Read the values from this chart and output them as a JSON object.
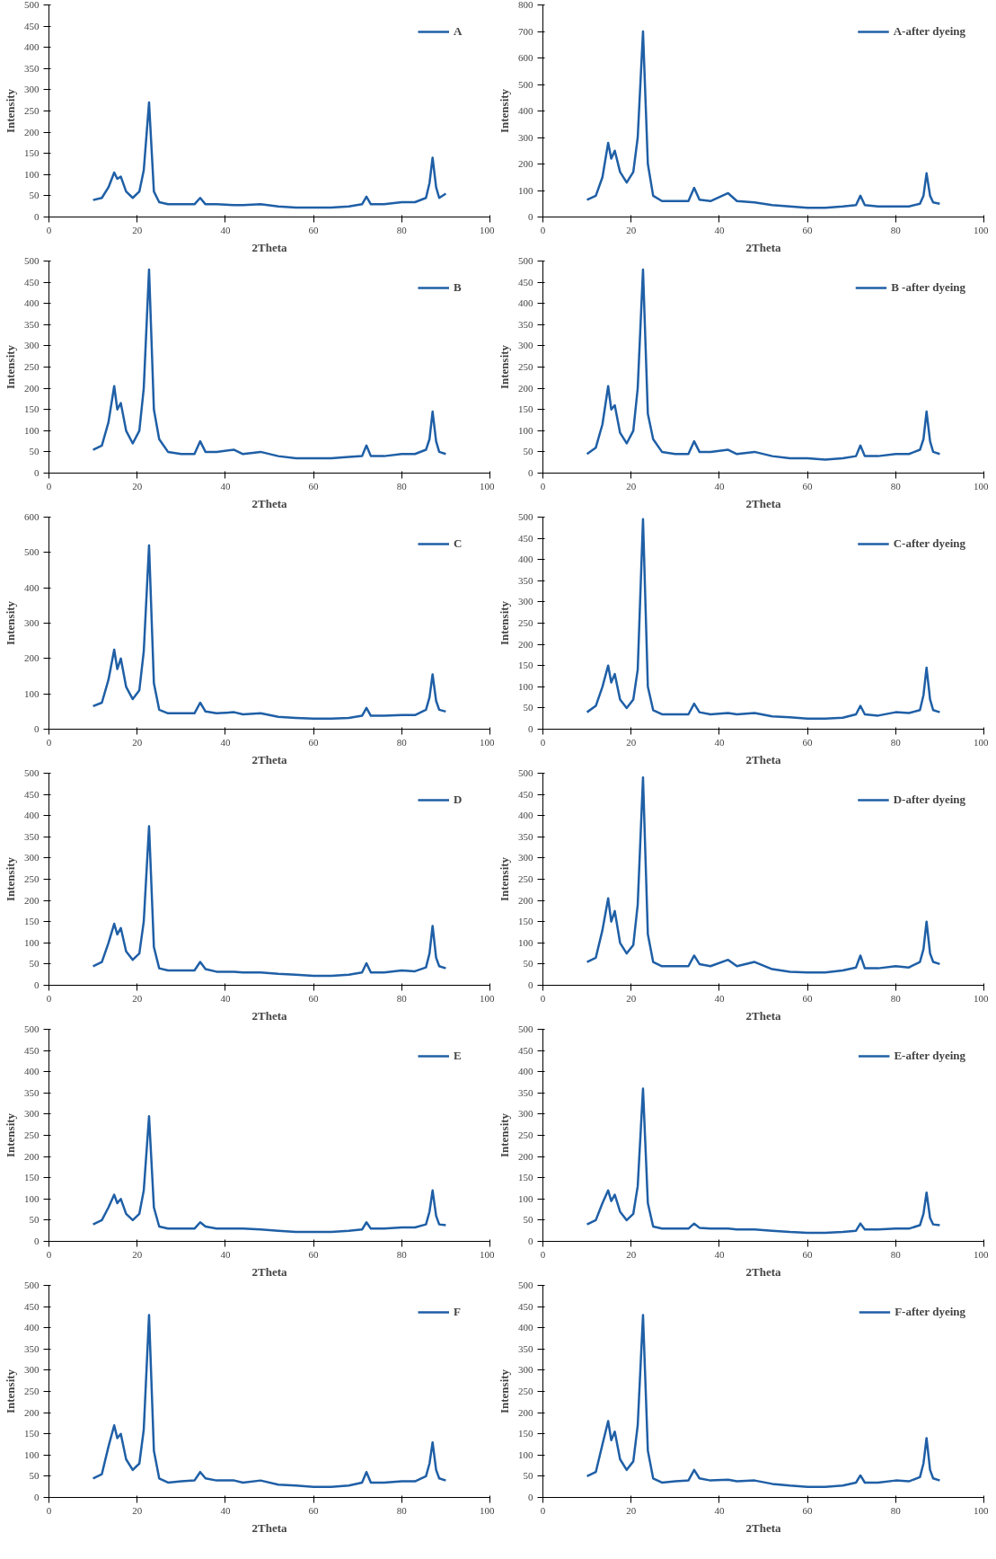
{
  "chart_data": [
    {
      "type": "line",
      "xlabel": "2Theta",
      "ylabel": "Intensity",
      "xlim": [
        0,
        100
      ],
      "xticks": [
        0,
        20,
        40,
        60,
        80,
        100
      ],
      "ylim": [
        0,
        500
      ],
      "yticks": [
        0,
        50,
        100,
        150,
        200,
        250,
        300,
        350,
        400,
        450,
        500
      ],
      "legend": "top right",
      "grid": false,
      "x": [
        10,
        12,
        13.5,
        14.8,
        15.5,
        16.3,
        17.5,
        19,
        20.5,
        21.5,
        22.7,
        23.8,
        25,
        27,
        30,
        33,
        34.3,
        35.5,
        38,
        42,
        44,
        48,
        52,
        56,
        60,
        64,
        68,
        71,
        72,
        73,
        76,
        80,
        83,
        85.5,
        86.3,
        87,
        87.8,
        88.5,
        90
      ],
      "series": [
        {
          "name": "A",
          "color": "#1f5fa6",
          "values": [
            40,
            45,
            70,
            105,
            90,
            95,
            60,
            45,
            60,
            110,
            270,
            60,
            35,
            30,
            30,
            30,
            45,
            30,
            30,
            28,
            28,
            30,
            25,
            22,
            22,
            22,
            25,
            30,
            48,
            30,
            30,
            35,
            35,
            45,
            80,
            140,
            70,
            45,
            55
          ]
        }
      ]
    },
    {
      "type": "line",
      "xlabel": "2Theta",
      "ylabel": "Intensity",
      "xlim": [
        0,
        100
      ],
      "xticks": [
        0,
        20,
        40,
        60,
        80,
        100
      ],
      "ylim": [
        0,
        800
      ],
      "yticks": [
        0,
        100,
        200,
        300,
        400,
        500,
        600,
        700,
        800
      ],
      "legend": "top right",
      "grid": false,
      "x": [
        10,
        12,
        13.5,
        14.8,
        15.5,
        16.3,
        17.5,
        19,
        20.5,
        21.5,
        22.7,
        23.8,
        25,
        27,
        30,
        33,
        34.3,
        35.5,
        38,
        42,
        44,
        48,
        52,
        56,
        60,
        64,
        68,
        71,
        72,
        73,
        76,
        80,
        83,
        85.5,
        86.3,
        87,
        87.8,
        88.5,
        90
      ],
      "series": [
        {
          "name": "A-after dyeing",
          "color": "#1f5fa6",
          "values": [
            65,
            80,
            150,
            280,
            220,
            250,
            170,
            130,
            170,
            300,
            700,
            200,
            80,
            60,
            60,
            60,
            110,
            65,
            60,
            90,
            60,
            55,
            45,
            40,
            35,
            35,
            40,
            45,
            80,
            45,
            40,
            40,
            40,
            50,
            80,
            165,
            80,
            55,
            50
          ]
        }
      ]
    },
    {
      "type": "line",
      "xlabel": "2Theta",
      "ylabel": "Intensity",
      "xlim": [
        0,
        100
      ],
      "xticks": [
        0,
        20,
        40,
        60,
        80,
        100
      ],
      "ylim": [
        0,
        500
      ],
      "yticks": [
        0,
        50,
        100,
        150,
        200,
        250,
        300,
        350,
        400,
        450,
        500
      ],
      "legend": "top right",
      "grid": false,
      "x": [
        10,
        12,
        13.5,
        14.8,
        15.5,
        16.3,
        17.5,
        19,
        20.5,
        21.5,
        22.7,
        23.8,
        25,
        27,
        30,
        33,
        34.3,
        35.5,
        38,
        42,
        44,
        48,
        52,
        56,
        60,
        64,
        68,
        71,
        72,
        73,
        76,
        80,
        83,
        85.5,
        86.3,
        87,
        87.8,
        88.5,
        90
      ],
      "series": [
        {
          "name": "B",
          "color": "#1f5fa6",
          "values": [
            55,
            65,
            120,
            205,
            150,
            165,
            100,
            70,
            100,
            200,
            480,
            150,
            80,
            50,
            45,
            45,
            75,
            50,
            50,
            55,
            45,
            50,
            40,
            35,
            35,
            35,
            38,
            40,
            65,
            40,
            40,
            45,
            45,
            55,
            80,
            145,
            75,
            50,
            45
          ]
        }
      ]
    },
    {
      "type": "line",
      "xlabel": "2Theta",
      "ylabel": "Intensity",
      "xlim": [
        0,
        100
      ],
      "xticks": [
        0,
        20,
        40,
        60,
        80,
        100
      ],
      "ylim": [
        0,
        500
      ],
      "yticks": [
        0,
        50,
        100,
        150,
        200,
        250,
        300,
        350,
        400,
        450,
        500
      ],
      "legend": "top right",
      "grid": false,
      "x": [
        10,
        12,
        13.5,
        14.8,
        15.5,
        16.3,
        17.5,
        19,
        20.5,
        21.5,
        22.7,
        23.8,
        25,
        27,
        30,
        33,
        34.3,
        35.5,
        38,
        42,
        44,
        48,
        52,
        56,
        60,
        64,
        68,
        71,
        72,
        73,
        76,
        80,
        83,
        85.5,
        86.3,
        87,
        87.8,
        88.5,
        90
      ],
      "series": [
        {
          "name": "B -after dyeing",
          "color": "#1f5fa6",
          "values": [
            45,
            60,
            115,
            205,
            150,
            160,
            95,
            70,
            100,
            200,
            480,
            140,
            80,
            50,
            45,
            45,
            75,
            50,
            50,
            55,
            45,
            50,
            40,
            35,
            35,
            32,
            35,
            40,
            65,
            40,
            40,
            45,
            45,
            55,
            80,
            145,
            75,
            50,
            45
          ]
        }
      ]
    },
    {
      "type": "line",
      "xlabel": "2Theta",
      "ylabel": "Intensity",
      "xlim": [
        0,
        100
      ],
      "xticks": [
        0,
        20,
        40,
        60,
        80,
        100
      ],
      "ylim": [
        0,
        600
      ],
      "yticks": [
        0,
        100,
        200,
        300,
        400,
        500,
        600
      ],
      "legend": "top right",
      "grid": false,
      "x": [
        10,
        12,
        13.5,
        14.8,
        15.5,
        16.3,
        17.5,
        19,
        20.5,
        21.5,
        22.7,
        23.8,
        25,
        27,
        30,
        33,
        34.3,
        35.5,
        38,
        42,
        44,
        48,
        52,
        56,
        60,
        64,
        68,
        71,
        72,
        73,
        76,
        80,
        83,
        85.5,
        86.3,
        87,
        87.8,
        88.5,
        90
      ],
      "series": [
        {
          "name": "C",
          "color": "#1f5fa6",
          "values": [
            65,
            75,
            140,
            225,
            170,
            200,
            120,
            85,
            110,
            220,
            520,
            130,
            55,
            45,
            45,
            45,
            75,
            50,
            45,
            48,
            42,
            45,
            35,
            32,
            30,
            30,
            32,
            38,
            60,
            38,
            38,
            40,
            40,
            55,
            90,
            155,
            80,
            55,
            50
          ]
        }
      ]
    },
    {
      "type": "line",
      "xlabel": "2Theta",
      "ylabel": "Intensity",
      "xlim": [
        0,
        100
      ],
      "xticks": [
        0,
        20,
        40,
        60,
        80,
        100
      ],
      "ylim": [
        0,
        500
      ],
      "yticks": [
        0,
        50,
        100,
        150,
        200,
        250,
        300,
        350,
        400,
        450,
        500
      ],
      "legend": "top right",
      "grid": false,
      "x": [
        10,
        12,
        13.5,
        14.8,
        15.5,
        16.3,
        17.5,
        19,
        20.5,
        21.5,
        22.7,
        23.8,
        25,
        27,
        30,
        33,
        34.3,
        35.5,
        38,
        42,
        44,
        48,
        52,
        56,
        60,
        64,
        68,
        71,
        72,
        73,
        76,
        80,
        83,
        85.5,
        86.3,
        87,
        87.8,
        88.5,
        90
      ],
      "series": [
        {
          "name": "C-after dyeing",
          "color": "#1f5fa6",
          "values": [
            40,
            55,
            100,
            150,
            110,
            130,
            70,
            50,
            70,
            140,
            495,
            100,
            45,
            35,
            35,
            35,
            60,
            40,
            35,
            38,
            35,
            38,
            30,
            28,
            25,
            25,
            27,
            35,
            55,
            35,
            32,
            40,
            38,
            45,
            80,
            145,
            70,
            45,
            40
          ]
        }
      ]
    },
    {
      "type": "line",
      "xlabel": "2Theta",
      "ylabel": "Intensity",
      "xlim": [
        0,
        100
      ],
      "xticks": [
        0,
        20,
        40,
        60,
        80,
        100
      ],
      "ylim": [
        0,
        500
      ],
      "yticks": [
        0,
        50,
        100,
        150,
        200,
        250,
        300,
        350,
        400,
        450,
        500
      ],
      "legend": "top right",
      "grid": false,
      "x": [
        10,
        12,
        13.5,
        14.8,
        15.5,
        16.3,
        17.5,
        19,
        20.5,
        21.5,
        22.7,
        23.8,
        25,
        27,
        30,
        33,
        34.3,
        35.5,
        38,
        42,
        44,
        48,
        52,
        56,
        60,
        64,
        68,
        71,
        72,
        73,
        76,
        80,
        83,
        85.5,
        86.3,
        87,
        87.8,
        88.5,
        90
      ],
      "series": [
        {
          "name": "D",
          "color": "#1f5fa6",
          "values": [
            45,
            55,
            100,
            145,
            120,
            135,
            80,
            60,
            75,
            150,
            375,
            90,
            40,
            35,
            35,
            35,
            55,
            38,
            32,
            32,
            30,
            30,
            27,
            25,
            22,
            22,
            25,
            30,
            52,
            30,
            30,
            35,
            33,
            42,
            75,
            140,
            65,
            45,
            40
          ]
        }
      ]
    },
    {
      "type": "line",
      "xlabel": "2Theta",
      "ylabel": "Intensity",
      "xlim": [
        0,
        100
      ],
      "xticks": [
        0,
        20,
        40,
        60,
        80,
        100
      ],
      "ylim": [
        0,
        500
      ],
      "yticks": [
        0,
        50,
        100,
        150,
        200,
        250,
        300,
        350,
        400,
        450,
        500
      ],
      "legend": "top right",
      "grid": false,
      "x": [
        10,
        12,
        13.5,
        14.8,
        15.5,
        16.3,
        17.5,
        19,
        20.5,
        21.5,
        22.7,
        23.8,
        25,
        27,
        30,
        33,
        34.3,
        35.5,
        38,
        42,
        44,
        48,
        52,
        56,
        60,
        64,
        68,
        71,
        72,
        73,
        76,
        80,
        83,
        85.5,
        86.3,
        87,
        87.8,
        88.5,
        90
      ],
      "series": [
        {
          "name": "D-after dyeing",
          "color": "#1f5fa6",
          "values": [
            55,
            65,
            130,
            205,
            150,
            175,
            100,
            75,
            95,
            190,
            490,
            120,
            55,
            45,
            45,
            45,
            70,
            50,
            45,
            60,
            45,
            55,
            38,
            32,
            30,
            30,
            35,
            42,
            70,
            40,
            40,
            45,
            42,
            55,
            85,
            150,
            75,
            55,
            50
          ]
        }
      ]
    },
    {
      "type": "line",
      "xlabel": "2Theta",
      "ylabel": "Intensity",
      "xlim": [
        0,
        100
      ],
      "xticks": [
        0,
        20,
        40,
        60,
        80,
        100
      ],
      "ylim": [
        0,
        500
      ],
      "yticks": [
        0,
        50,
        100,
        150,
        200,
        250,
        300,
        350,
        400,
        450,
        500
      ],
      "legend": "top right",
      "grid": false,
      "x": [
        10,
        12,
        13.5,
        14.8,
        15.5,
        16.3,
        17.5,
        19,
        20.5,
        21.5,
        22.7,
        23.8,
        25,
        27,
        30,
        33,
        34.3,
        35.5,
        38,
        42,
        44,
        48,
        52,
        56,
        60,
        64,
        68,
        71,
        72,
        73,
        76,
        80,
        83,
        85.5,
        86.3,
        87,
        87.8,
        88.5,
        90
      ],
      "series": [
        {
          "name": "E",
          "color": "#1f5fa6",
          "values": [
            40,
            50,
            80,
            110,
            90,
            100,
            65,
            50,
            65,
            120,
            295,
            80,
            35,
            30,
            30,
            30,
            45,
            35,
            30,
            30,
            30,
            28,
            25,
            22,
            22,
            22,
            25,
            28,
            45,
            30,
            30,
            33,
            33,
            40,
            70,
            120,
            60,
            40,
            38
          ]
        }
      ]
    },
    {
      "type": "line",
      "xlabel": "2Theta",
      "ylabel": "Intensity",
      "xlim": [
        0,
        100
      ],
      "xticks": [
        0,
        20,
        40,
        60,
        80,
        100
      ],
      "ylim": [
        0,
        500
      ],
      "yticks": [
        0,
        50,
        100,
        150,
        200,
        250,
        300,
        350,
        400,
        450,
        500
      ],
      "legend": "top right",
      "grid": false,
      "x": [
        10,
        12,
        13.5,
        14.8,
        15.5,
        16.3,
        17.5,
        19,
        20.5,
        21.5,
        22.7,
        23.8,
        25,
        27,
        30,
        33,
        34.3,
        35.5,
        38,
        42,
        44,
        48,
        52,
        56,
        60,
        64,
        68,
        71,
        72,
        73,
        76,
        80,
        83,
        85.5,
        86.3,
        87,
        87.8,
        88.5,
        90
      ],
      "series": [
        {
          "name": "E-after dyeing",
          "color": "#1f5fa6",
          "values": [
            40,
            50,
            90,
            120,
            95,
            110,
            70,
            50,
            65,
            130,
            360,
            90,
            35,
            30,
            30,
            30,
            42,
            32,
            30,
            30,
            28,
            28,
            25,
            22,
            20,
            20,
            22,
            25,
            42,
            28,
            28,
            30,
            30,
            38,
            65,
            115,
            55,
            40,
            38
          ]
        }
      ]
    },
    {
      "type": "line",
      "xlabel": "2Theta",
      "ylabel": "Intensity",
      "xlim": [
        0,
        100
      ],
      "xticks": [
        0,
        20,
        40,
        60,
        80,
        100
      ],
      "ylim": [
        0,
        500
      ],
      "yticks": [
        0,
        50,
        100,
        150,
        200,
        250,
        300,
        350,
        400,
        450,
        500
      ],
      "legend": "top right",
      "grid": false,
      "x": [
        10,
        12,
        13.5,
        14.8,
        15.5,
        16.3,
        17.5,
        19,
        20.5,
        21.5,
        22.7,
        23.8,
        25,
        27,
        30,
        33,
        34.3,
        35.5,
        38,
        42,
        44,
        48,
        52,
        56,
        60,
        64,
        68,
        71,
        72,
        73,
        76,
        80,
        83,
        85.5,
        86.3,
        87,
        87.8,
        88.5,
        90
      ],
      "series": [
        {
          "name": "F",
          "color": "#1f5fa6",
          "values": [
            45,
            55,
            120,
            170,
            140,
            150,
            90,
            65,
            80,
            160,
            430,
            110,
            45,
            35,
            38,
            40,
            60,
            45,
            40,
            40,
            35,
            40,
            30,
            28,
            25,
            25,
            28,
            35,
            60,
            35,
            35,
            38,
            38,
            50,
            80,
            130,
            65,
            45,
            40
          ]
        }
      ]
    },
    {
      "type": "line",
      "xlabel": "2Theta",
      "ylabel": "Intensity",
      "xlim": [
        0,
        100
      ],
      "xticks": [
        0,
        20,
        40,
        60,
        80,
        100
      ],
      "ylim": [
        0,
        500
      ],
      "yticks": [
        0,
        50,
        100,
        150,
        200,
        250,
        300,
        350,
        400,
        450,
        500
      ],
      "legend": "top right",
      "grid": false,
      "x": [
        10,
        12,
        13.5,
        14.8,
        15.5,
        16.3,
        17.5,
        19,
        20.5,
        21.5,
        22.7,
        23.8,
        25,
        27,
        30,
        33,
        34.3,
        35.5,
        38,
        42,
        44,
        48,
        52,
        56,
        60,
        64,
        68,
        71,
        72,
        73,
        76,
        80,
        83,
        85.5,
        86.3,
        87,
        87.8,
        88.5,
        90
      ],
      "series": [
        {
          "name": "F-after dyeing",
          "color": "#1f5fa6",
          "values": [
            50,
            60,
            125,
            180,
            135,
            155,
            90,
            65,
            85,
            170,
            430,
            110,
            45,
            35,
            38,
            40,
            65,
            45,
            40,
            42,
            38,
            40,
            32,
            28,
            25,
            25,
            28,
            35,
            52,
            35,
            35,
            40,
            38,
            48,
            80,
            140,
            65,
            45,
            40
          ]
        }
      ]
    }
  ]
}
